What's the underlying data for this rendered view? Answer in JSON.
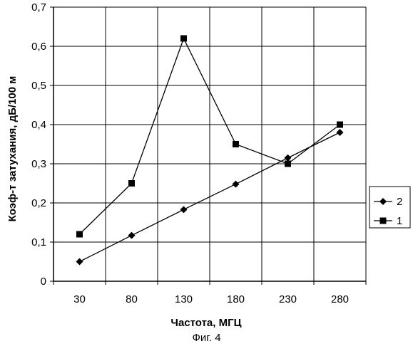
{
  "chart_data": {
    "type": "line",
    "categories": [
      "30",
      "80",
      "130",
      "180",
      "230",
      "280"
    ],
    "ylabel": "Коэф-т затухания, дБ/100 м",
    "xlabel": "Частота, МГЦ",
    "ylim": [
      0,
      0.7
    ],
    "yticks": [
      "0",
      "0,1",
      "0,2",
      "0,3",
      "0,4",
      "0,5",
      "0,6",
      "0,7"
    ],
    "grid": true,
    "legend_position": "right",
    "series": [
      {
        "name": "2",
        "marker": "diamond",
        "values": [
          0.05,
          0.117,
          0.183,
          0.248,
          0.315,
          0.38
        ]
      },
      {
        "name": "1",
        "marker": "square",
        "values": [
          0.12,
          0.25,
          0.62,
          0.35,
          0.3,
          0.4
        ]
      }
    ]
  },
  "caption": "Фиг. 4"
}
